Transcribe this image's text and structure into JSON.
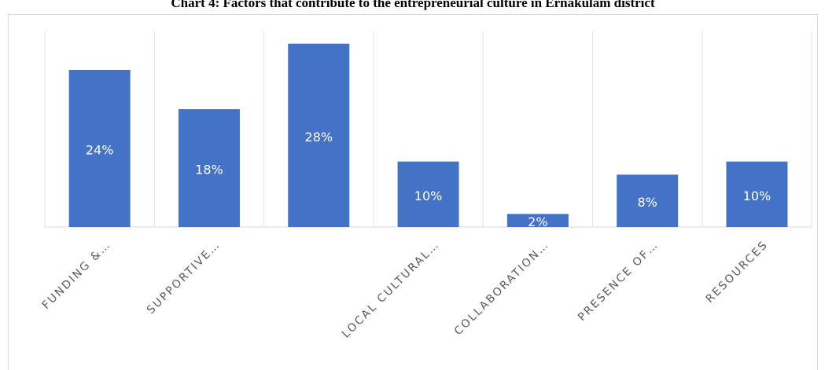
{
  "chart_data": {
    "type": "bar",
    "title": "Chart 4: Factors that contribute to the entrepreneurial culture in Ernakulam district",
    "categories": [
      "FUNDING &…",
      "SUPPORTIVE…",
      null,
      "LOCAL CULTURAL…",
      "COLLABORATION…",
      "PRESENCE OF…",
      "RESOURCES"
    ],
    "values": [
      24,
      18,
      28,
      10,
      2,
      8,
      10
    ],
    "value_labels": [
      "24%",
      "18%",
      "28%",
      "10%",
      "2%",
      "8%",
      "10%"
    ],
    "color": "#4472c4",
    "ylim": [
      0,
      30
    ]
  }
}
